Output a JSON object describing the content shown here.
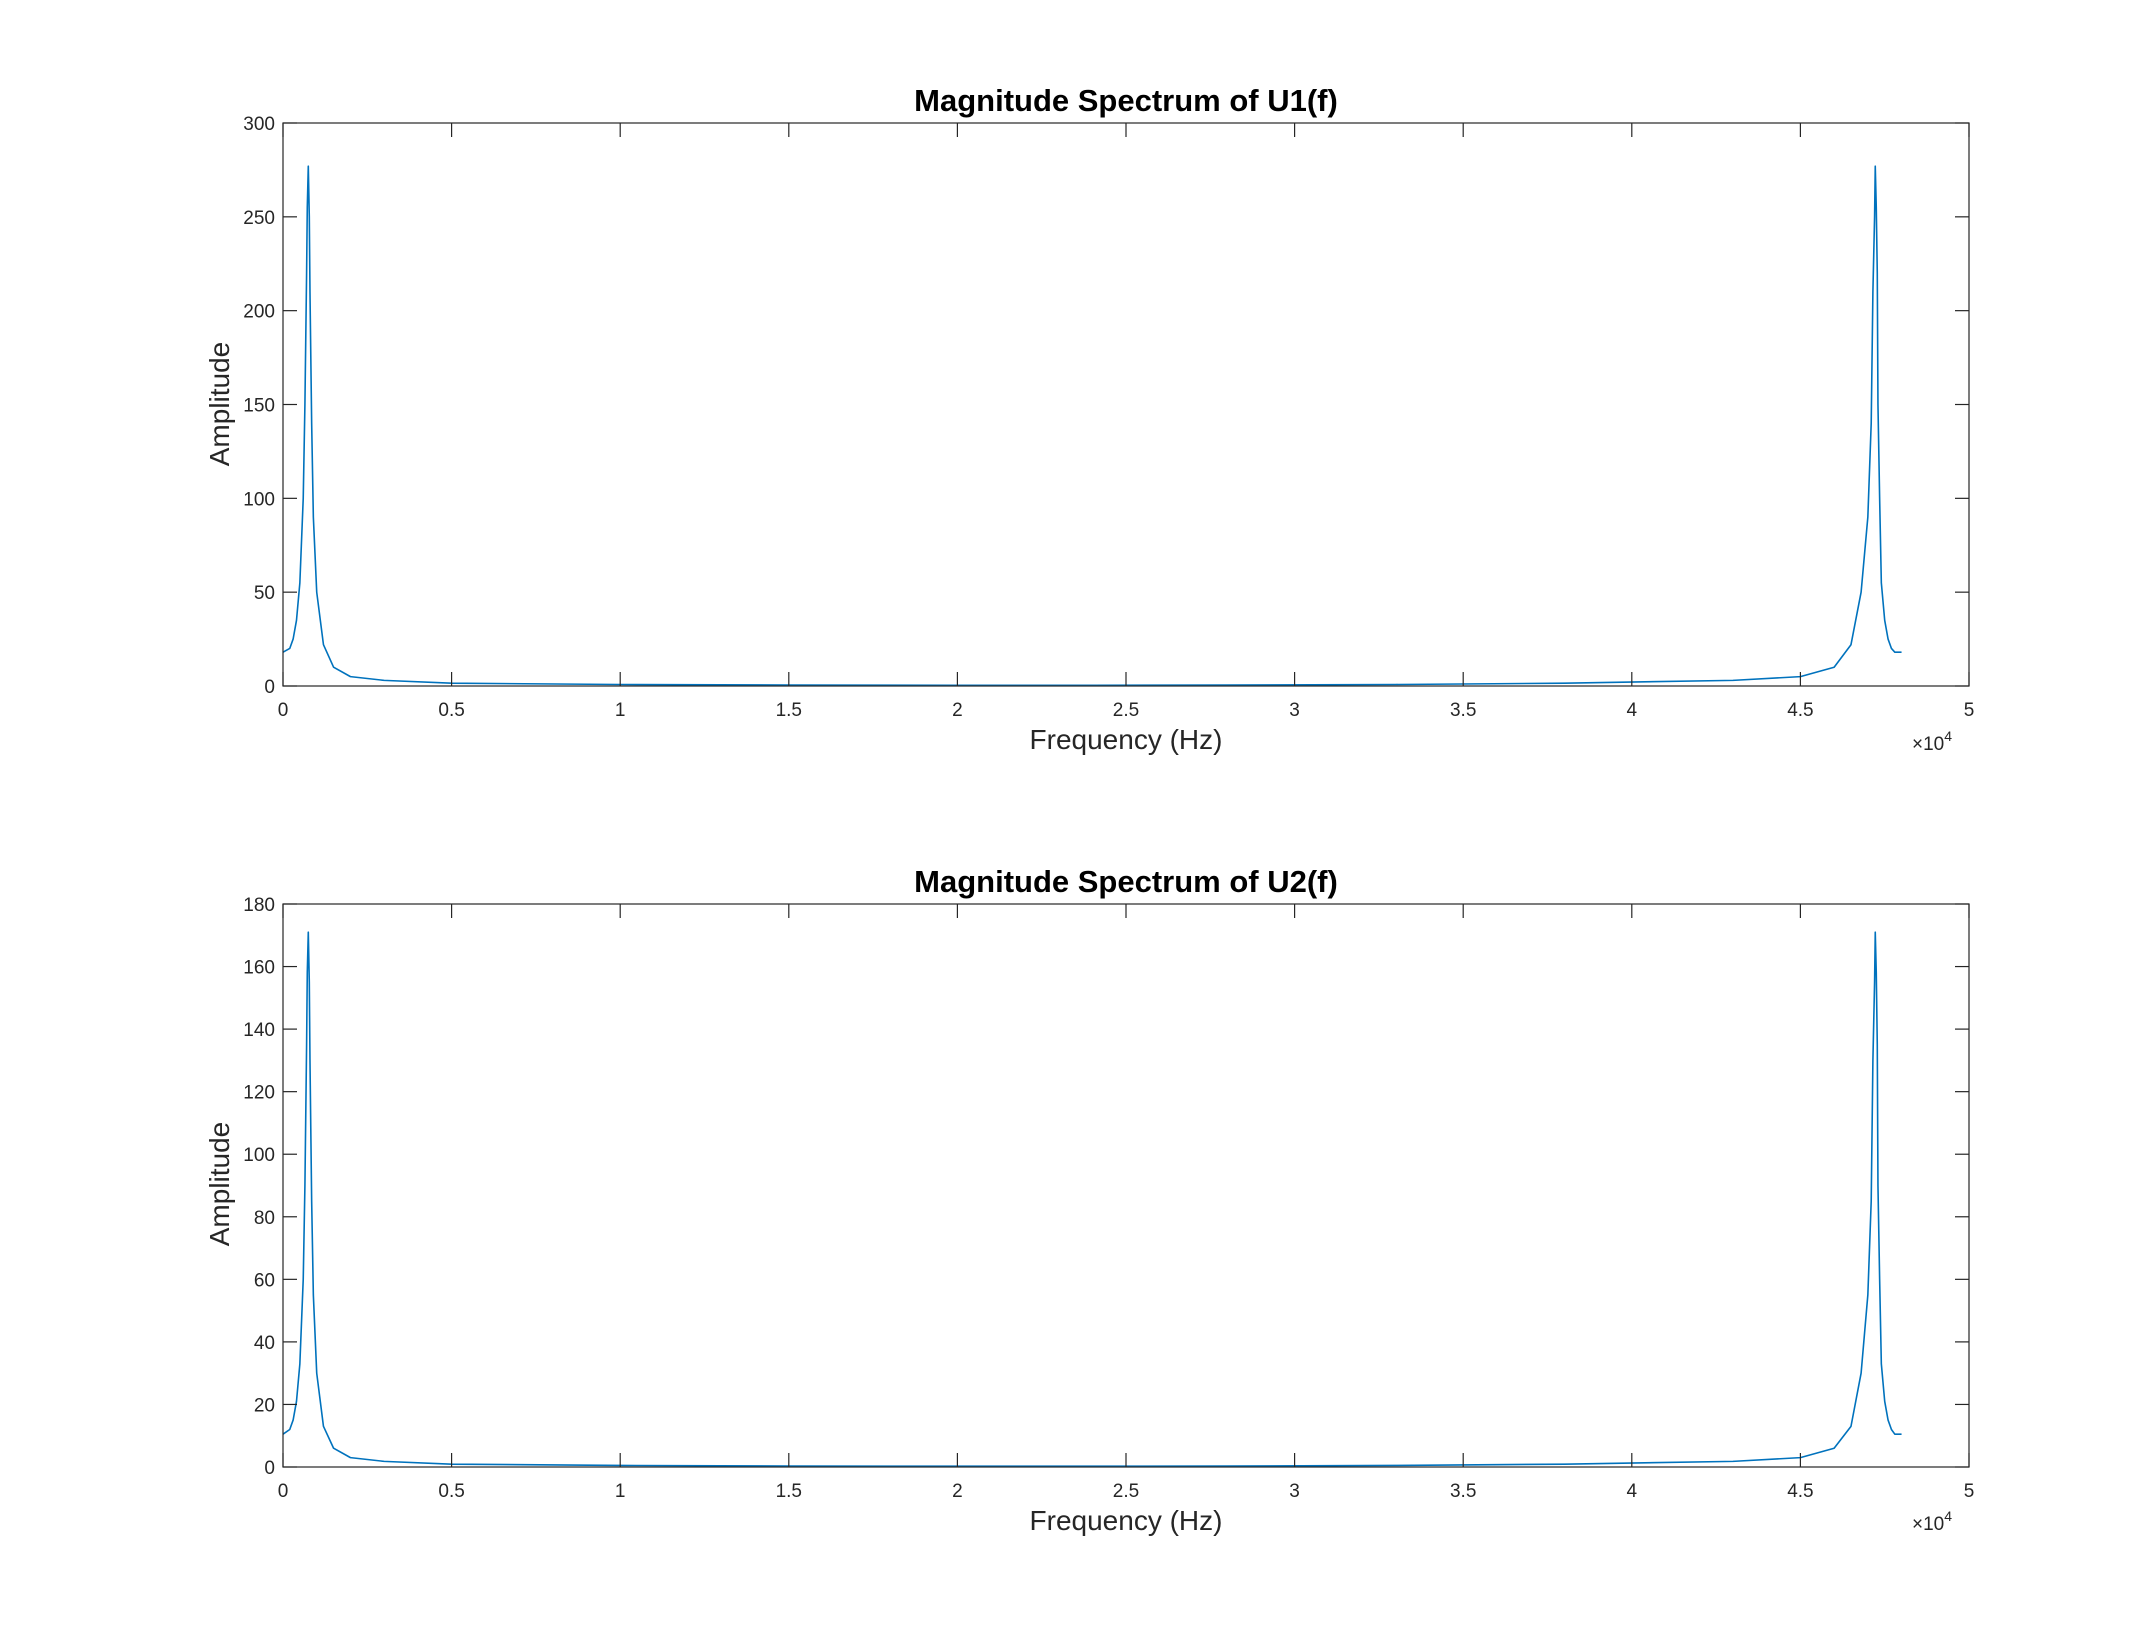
{
  "chart_data": [
    {
      "type": "line",
      "title": "Magnitude Spectrum of U1(f)",
      "xlabel": "Frequency (Hz)",
      "ylabel": "Amplitude",
      "xlim": [
        0,
        50000
      ],
      "ylim": [
        0,
        300
      ],
      "x_ticks": [
        0,
        5000,
        10000,
        15000,
        20000,
        25000,
        30000,
        35000,
        40000,
        45000,
        50000
      ],
      "x_tick_labels": [
        "0",
        "0.5",
        "1",
        "1.5",
        "2",
        "2.5",
        "3",
        "3.5",
        "4",
        "4.5",
        "5"
      ],
      "x_exponent_label": "×10",
      "x_exponent_power": "4",
      "y_ticks": [
        0,
        50,
        100,
        150,
        200,
        250,
        300
      ],
      "y_tick_labels": [
        "0",
        "50",
        "100",
        "150",
        "200",
        "250",
        "300"
      ],
      "grid": false,
      "line_color": "#0072BD",
      "series": [
        {
          "x": [
            0,
            200,
            300,
            400,
            500,
            600,
            650,
            700,
            720,
            750,
            780,
            800,
            850,
            900,
            1000,
            1200,
            1500,
            2000,
            3000,
            5000,
            10000,
            15000,
            20000,
            24000,
            28000,
            33000,
            38000,
            43000,
            45000,
            46000,
            46500,
            46800,
            47000,
            47100,
            47150,
            47200,
            47220,
            47250,
            47280,
            47300,
            47350,
            47400,
            47500,
            47600,
            47700,
            47800,
            48000
          ],
          "y": [
            18,
            20,
            25,
            35,
            55,
            100,
            150,
            220,
            255,
            277,
            250,
            210,
            140,
            90,
            50,
            22,
            10,
            5,
            3,
            1.5,
            0.8,
            0.5,
            0.4,
            0.4,
            0.5,
            0.8,
            1.5,
            3,
            5,
            10,
            22,
            50,
            90,
            140,
            210,
            250,
            277,
            255,
            220,
            150,
            100,
            55,
            35,
            25,
            20,
            18,
            18
          ]
        }
      ]
    },
    {
      "type": "line",
      "title": "Magnitude Spectrum of U2(f)",
      "xlabel": "Frequency (Hz)",
      "ylabel": "Amplitude",
      "xlim": [
        0,
        50000
      ],
      "ylim": [
        0,
        180
      ],
      "x_ticks": [
        0,
        5000,
        10000,
        15000,
        20000,
        25000,
        30000,
        35000,
        40000,
        45000,
        50000
      ],
      "x_tick_labels": [
        "0",
        "0.5",
        "1",
        "1.5",
        "2",
        "2.5",
        "3",
        "3.5",
        "4",
        "4.5",
        "5"
      ],
      "x_exponent_label": "×10",
      "x_exponent_power": "4",
      "y_ticks": [
        0,
        20,
        40,
        60,
        80,
        100,
        120,
        140,
        160,
        180
      ],
      "y_tick_labels": [
        "0",
        "20",
        "40",
        "60",
        "80",
        "100",
        "120",
        "140",
        "160",
        "180"
      ],
      "grid": false,
      "line_color": "#0072BD",
      "series": [
        {
          "x": [
            0,
            200,
            300,
            400,
            500,
            600,
            650,
            700,
            720,
            750,
            780,
            800,
            850,
            900,
            1000,
            1200,
            1500,
            2000,
            3000,
            5000,
            10000,
            15000,
            20000,
            24000,
            28000,
            33000,
            38000,
            43000,
            45000,
            46000,
            46500,
            46800,
            47000,
            47100,
            47150,
            47200,
            47220,
            47250,
            47280,
            47300,
            47350,
            47400,
            47500,
            47600,
            47700,
            47800,
            48000
          ],
          "y": [
            10.5,
            12,
            15,
            21,
            33,
            60,
            90,
            135,
            158,
            171,
            155,
            130,
            85,
            55,
            30,
            13,
            6,
            3,
            1.8,
            0.9,
            0.5,
            0.3,
            0.25,
            0.25,
            0.3,
            0.5,
            0.9,
            1.8,
            3,
            6,
            13,
            30,
            55,
            85,
            130,
            155,
            171,
            158,
            135,
            90,
            60,
            33,
            21,
            15,
            12,
            10.5,
            10.5
          ]
        }
      ]
    }
  ]
}
